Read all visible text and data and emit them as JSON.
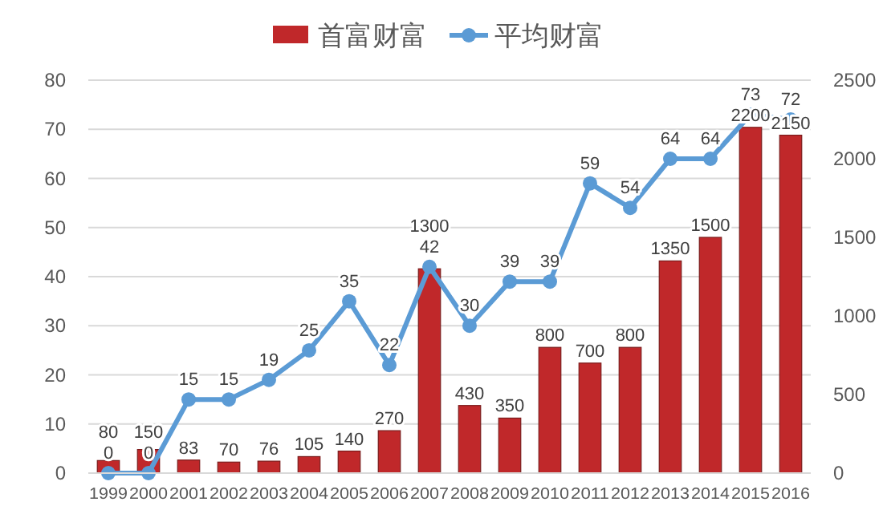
{
  "chart_data": {
    "type": "bar",
    "categories": [
      "1999",
      "2000",
      "2001",
      "2002",
      "2003",
      "2004",
      "2005",
      "2006",
      "2007",
      "2008",
      "2009",
      "2010",
      "2011",
      "2012",
      "2013",
      "2014",
      "2015",
      "2016"
    ],
    "series": [
      {
        "name": "首富财富",
        "axis": "y2",
        "color": "#c0282a",
        "values": [
          80,
          150,
          83,
          70,
          76,
          105,
          140,
          270,
          1300,
          430,
          350,
          800,
          700,
          800,
          1350,
          1500,
          2200,
          2150
        ]
      },
      {
        "name": "平均财富",
        "type": "line",
        "axis": "y",
        "color": "#5b9bd5",
        "marker": "circle",
        "values": [
          0,
          0,
          15,
          15,
          19,
          25,
          35,
          22,
          42,
          30,
          39,
          39,
          59,
          54,
          64,
          64,
          73,
          72
        ]
      }
    ],
    "ylim": [
      0,
      80
    ],
    "yticks": [
      0,
      10,
      20,
      30,
      40,
      50,
      60,
      70,
      80
    ],
    "y2lim": [
      0,
      2500
    ],
    "y2ticks": [
      0,
      500,
      1000,
      1500,
      2000,
      2500
    ],
    "grid": "y",
    "legend": "top",
    "data_labels": true
  }
}
